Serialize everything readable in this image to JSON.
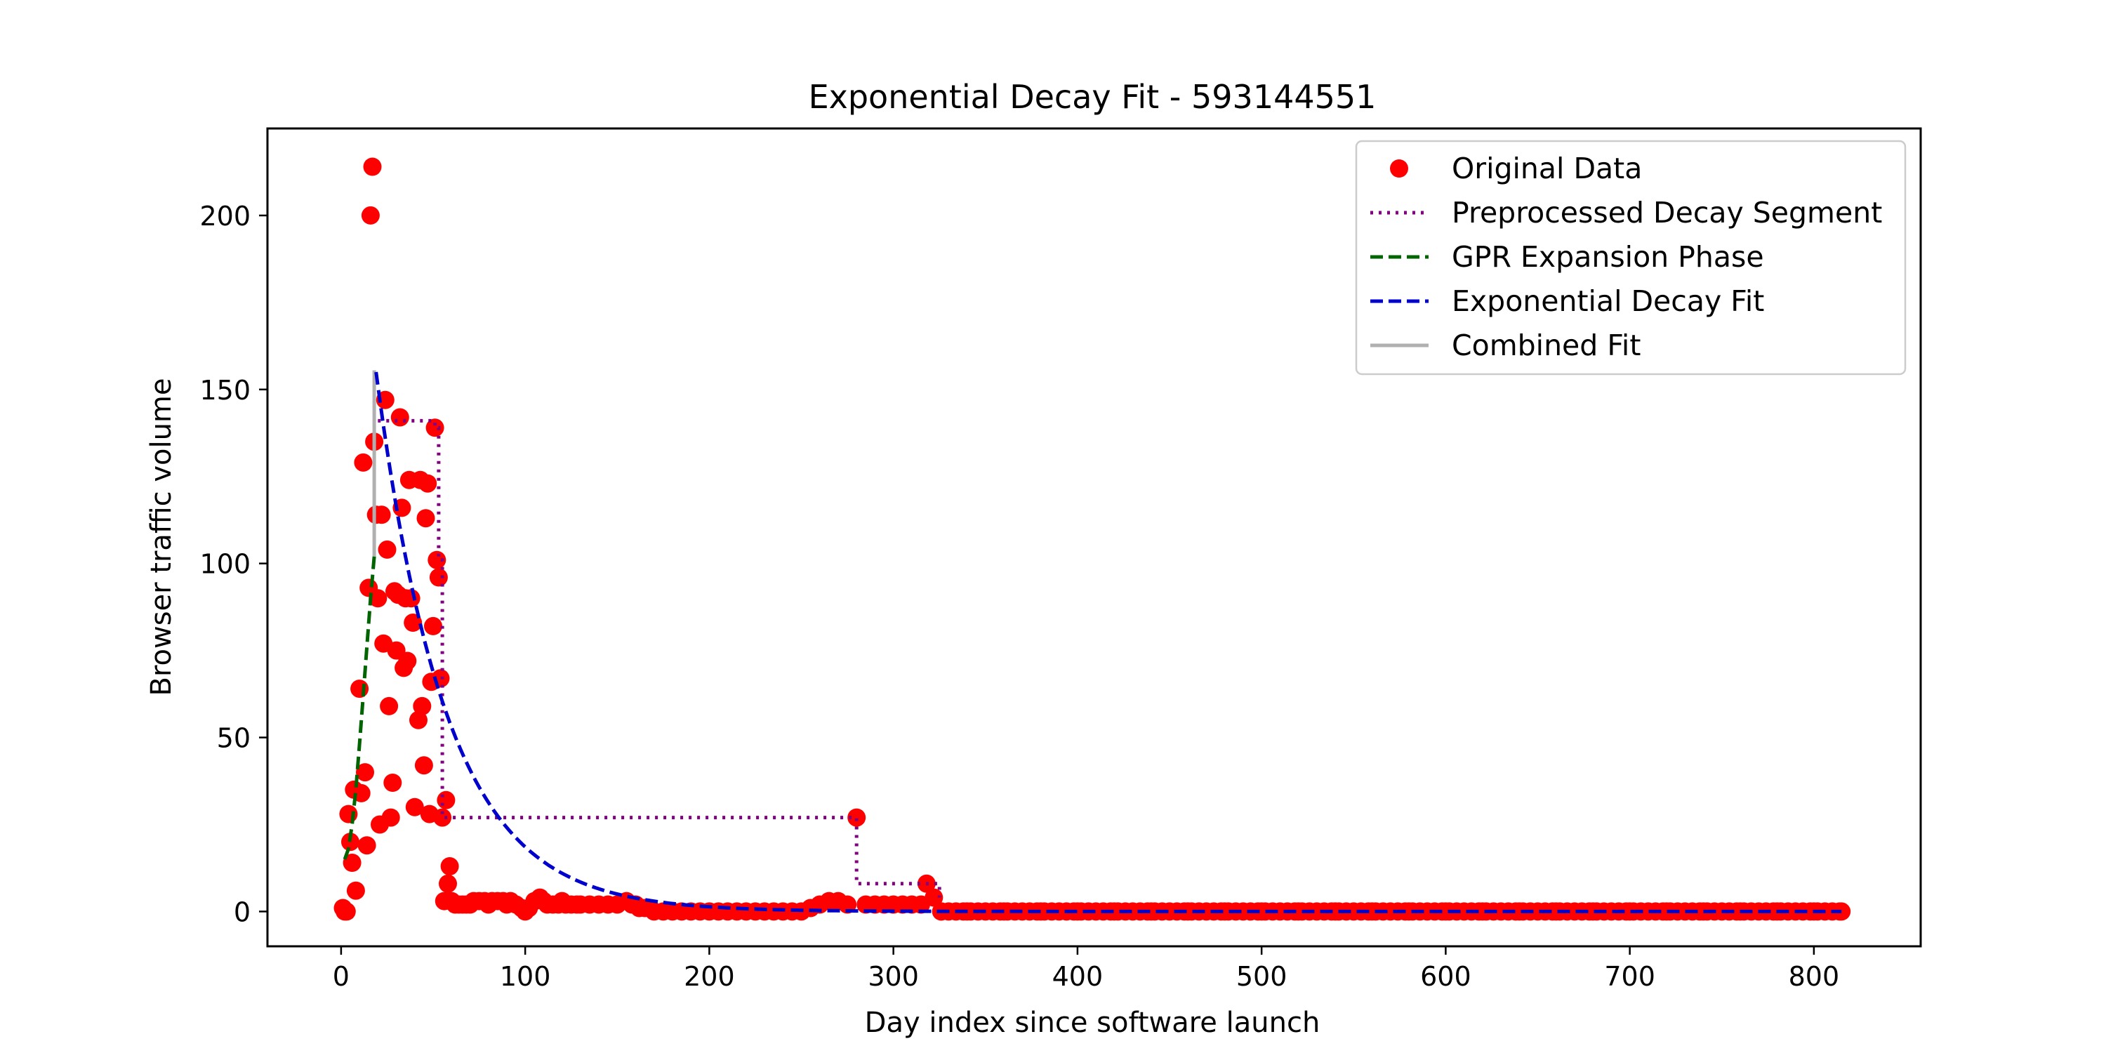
{
  "chart_data": {
    "type": "scatter",
    "title": "Exponential Decay Fit - 593144551",
    "xlabel": "Day index since software launch",
    "ylabel": "Browser traffic volume",
    "xlim": [
      -40,
      858
    ],
    "ylim": [
      -10,
      225
    ],
    "xticks": [
      0,
      100,
      200,
      300,
      400,
      500,
      600,
      700,
      800
    ],
    "yticks": [
      0,
      50,
      100,
      150,
      200
    ],
    "grid": false,
    "legend_position": "top-right",
    "colors": {
      "original": "#ff0000",
      "preprocessed": "#800080",
      "gpr": "#006400",
      "decay": "#0000cd",
      "combined": "#b0b0b0"
    },
    "legend": [
      {
        "label": "Original Data",
        "kind": "marker",
        "series": "original"
      },
      {
        "label": "Preprocessed Decay Segment",
        "kind": "dotted",
        "series": "preprocessed"
      },
      {
        "label": "GPR Expansion Phase",
        "kind": "dashed",
        "series": "gpr"
      },
      {
        "label": "Exponential Decay Fit",
        "kind": "dashed",
        "series": "decay"
      },
      {
        "label": "Combined Fit",
        "kind": "solid",
        "series": "combined"
      }
    ],
    "original_points": [
      [
        1,
        1
      ],
      [
        2,
        0
      ],
      [
        3,
        0
      ],
      [
        4,
        28
      ],
      [
        5,
        20
      ],
      [
        6,
        14
      ],
      [
        7,
        35
      ],
      [
        8,
        6
      ],
      [
        10,
        64
      ],
      [
        11,
        34
      ],
      [
        12,
        129
      ],
      [
        13,
        40
      ],
      [
        14,
        19
      ],
      [
        15,
        93
      ],
      [
        16,
        200
      ],
      [
        17,
        214
      ],
      [
        18,
        135
      ],
      [
        19,
        114
      ],
      [
        20,
        90
      ],
      [
        21,
        25
      ],
      [
        22,
        114
      ],
      [
        23,
        77
      ],
      [
        24,
        147
      ],
      [
        25,
        104
      ],
      [
        26,
        59
      ],
      [
        27,
        27
      ],
      [
        28,
        37
      ],
      [
        29,
        92
      ],
      [
        30,
        75
      ],
      [
        31,
        91
      ],
      [
        32,
        142
      ],
      [
        33,
        116
      ],
      [
        34,
        70
      ],
      [
        35,
        90
      ],
      [
        36,
        72
      ],
      [
        37,
        124
      ],
      [
        38,
        90
      ],
      [
        39,
        83
      ],
      [
        40,
        30
      ],
      [
        42,
        55
      ],
      [
        43,
        124
      ],
      [
        44,
        59
      ],
      [
        45,
        42
      ],
      [
        46,
        113
      ],
      [
        47,
        123
      ],
      [
        48,
        28
      ],
      [
        49,
        66
      ],
      [
        50,
        82
      ],
      [
        51,
        139
      ],
      [
        52,
        101
      ],
      [
        53,
        96
      ],
      [
        54,
        67
      ],
      [
        55,
        27
      ],
      [
        56,
        3
      ],
      [
        57,
        32
      ],
      [
        58,
        8
      ],
      [
        59,
        13
      ],
      [
        60,
        3
      ],
      [
        62,
        2
      ],
      [
        64,
        2
      ],
      [
        66,
        2
      ],
      [
        68,
        2
      ],
      [
        70,
        2
      ],
      [
        72,
        3
      ],
      [
        75,
        3
      ],
      [
        78,
        3
      ],
      [
        80,
        2
      ],
      [
        82,
        3
      ],
      [
        85,
        3
      ],
      [
        88,
        3
      ],
      [
        90,
        2
      ],
      [
        92,
        3
      ],
      [
        95,
        2
      ],
      [
        98,
        1
      ],
      [
        100,
        0
      ],
      [
        102,
        1
      ],
      [
        105,
        3
      ],
      [
        108,
        4
      ],
      [
        110,
        3
      ],
      [
        112,
        2
      ],
      [
        115,
        2
      ],
      [
        118,
        2
      ],
      [
        120,
        3
      ],
      [
        122,
        2
      ],
      [
        125,
        2
      ],
      [
        128,
        2
      ],
      [
        130,
        2
      ],
      [
        135,
        2
      ],
      [
        140,
        2
      ],
      [
        145,
        2
      ],
      [
        150,
        2
      ],
      [
        155,
        3
      ],
      [
        158,
        2
      ],
      [
        160,
        2
      ],
      [
        162,
        1
      ],
      [
        165,
        1
      ],
      [
        170,
        0
      ],
      [
        175,
        0
      ],
      [
        180,
        0
      ],
      [
        185,
        0
      ],
      [
        190,
        0
      ],
      [
        195,
        0
      ],
      [
        200,
        0
      ],
      [
        205,
        0
      ],
      [
        210,
        0
      ],
      [
        215,
        0
      ],
      [
        220,
        0
      ],
      [
        225,
        0
      ],
      [
        230,
        0
      ],
      [
        235,
        0
      ],
      [
        240,
        0
      ],
      [
        245,
        0
      ],
      [
        250,
        0
      ],
      [
        255,
        1
      ],
      [
        260,
        2
      ],
      [
        265,
        3
      ],
      [
        270,
        3
      ],
      [
        275,
        2
      ],
      [
        280,
        27
      ],
      [
        285,
        2
      ],
      [
        290,
        2
      ],
      [
        295,
        2
      ],
      [
        300,
        2
      ],
      [
        305,
        2
      ],
      [
        310,
        2
      ],
      [
        315,
        2
      ],
      [
        318,
        8
      ],
      [
        322,
        4
      ],
      [
        326,
        0
      ],
      [
        340,
        0
      ],
      [
        360,
        0
      ],
      [
        380,
        0
      ],
      [
        400,
        0
      ],
      [
        420,
        0
      ],
      [
        440,
        0
      ],
      [
        460,
        0
      ],
      [
        480,
        0
      ],
      [
        500,
        0
      ],
      [
        520,
        0
      ],
      [
        540,
        0
      ],
      [
        560,
        0
      ],
      [
        580,
        0
      ],
      [
        600,
        0
      ],
      [
        620,
        0
      ],
      [
        640,
        0
      ],
      [
        660,
        0
      ],
      [
        680,
        0
      ],
      [
        700,
        0
      ],
      [
        720,
        0
      ],
      [
        740,
        0
      ],
      [
        760,
        0
      ],
      [
        780,
        0
      ],
      [
        800,
        0
      ],
      [
        815,
        0
      ]
    ],
    "original_baseline_range": [
      326,
      815
    ],
    "preprocessed_segment": [
      [
        20,
        141
      ],
      [
        51,
        141
      ],
      [
        51,
        139
      ],
      [
        53,
        139
      ],
      [
        53,
        101
      ],
      [
        55,
        101
      ],
      [
        55,
        27
      ],
      [
        280,
        27
      ],
      [
        280,
        8
      ],
      [
        325,
        8
      ],
      [
        325,
        4
      ]
    ],
    "gpr_expansion_phase": [
      [
        2,
        15
      ],
      [
        4,
        18
      ],
      [
        6,
        25
      ],
      [
        8,
        35
      ],
      [
        10,
        48
      ],
      [
        12,
        62
      ],
      [
        14,
        76
      ],
      [
        16,
        90
      ],
      [
        18,
        102
      ]
    ],
    "exponential_decay_fit": {
      "x_start": 19,
      "x_end": 815,
      "amplitude": 155,
      "rate": 0.0262
    },
    "combined_fit": [
      [
        18,
        102
      ],
      [
        18,
        155
      ],
      [
        19,
        155
      ]
    ]
  }
}
